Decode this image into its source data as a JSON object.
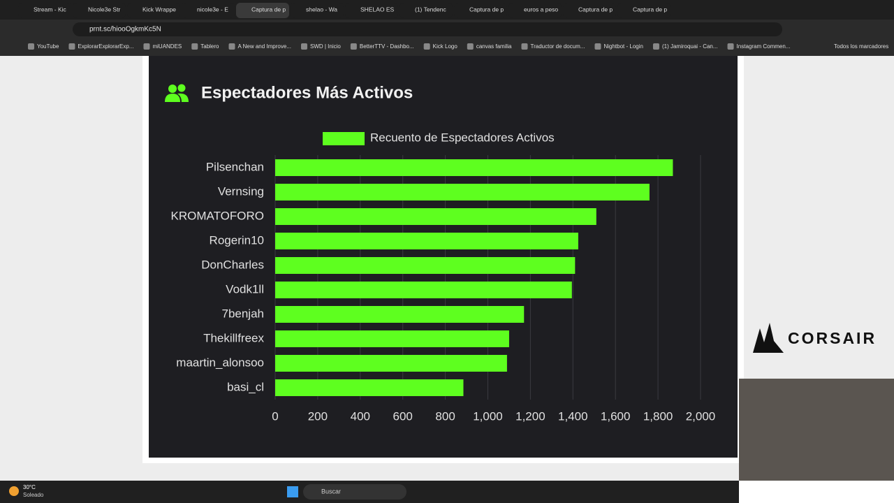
{
  "browser": {
    "tabs": [
      "Stream - Kic",
      "Nicole3e Str",
      "Kick Wrappe",
      "nicole3e - E",
      "Captura de p",
      "shelao - Wa",
      "SHELAO ES",
      "(1) Tendenc",
      "Captura de p",
      "euros a peso",
      "Captura de p",
      "Captura de p"
    ],
    "url": "prnt.sc/hiooOgkmKc5N",
    "bookmarks": [
      "YouTube",
      "ExplorarExplorarExp...",
      "miUANDES",
      "Tablero",
      "A New and Improve...",
      "SWD | Inicio",
      "BetterTTV - Dashbo...",
      "Kick Logo",
      "canvas familia",
      "Traductor de docum...",
      "Nightbot - Login",
      "(1) Jamiroquai - Can...",
      "Instagram Commen..."
    ],
    "all_bookmarks": "Todos los marcadores"
  },
  "overlay": {
    "brand": "CORSAIR"
  },
  "taskbar": {
    "temperature": "30°C",
    "weather": "Soleado",
    "search": "Buscar"
  },
  "chart_data": {
    "type": "bar",
    "orientation": "horizontal",
    "title": "Espectadores Más Activos",
    "categories": [
      "Pilsenchan",
      "Vernsing",
      "KROMATOFORO",
      "Rogerin10",
      "DonCharles",
      "Vodk1ll",
      "7benjah",
      "Thekillfreex",
      "maartin_alonsoo",
      "basi_cl"
    ],
    "series": [
      {
        "name": "Recuento de Espectadores Activos",
        "color": "#5eff1f",
        "values": [
          1870,
          1760,
          1510,
          1425,
          1410,
          1395,
          1170,
          1100,
          1090,
          885
        ]
      }
    ],
    "xlim": [
      0,
      2000
    ],
    "xticks": [
      0,
      200,
      400,
      600,
      800,
      {
        "value": 1000,
        "label": "1,000"
      },
      {
        "value": 1200,
        "label": "1,200"
      },
      {
        "value": 1400,
        "label": "1,400"
      },
      {
        "value": 1600,
        "label": "1,600"
      },
      {
        "value": 1800,
        "label": "1,800"
      },
      {
        "value": 2000,
        "label": "2,000"
      }
    ],
    "grid": true,
    "legend": "top"
  }
}
